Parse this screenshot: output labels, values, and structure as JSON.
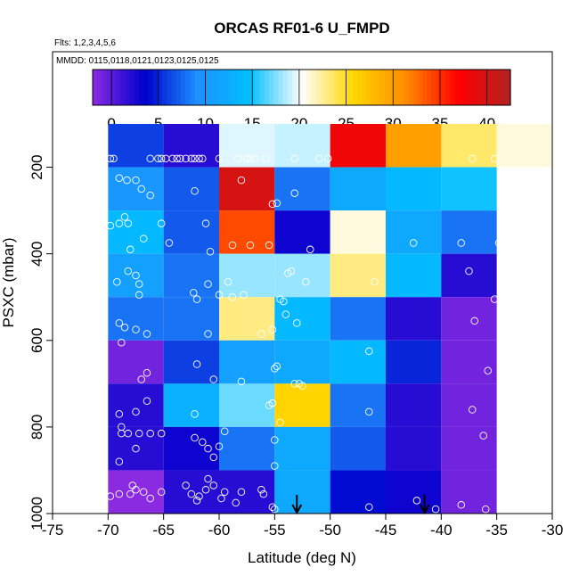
{
  "chart_data": {
    "type": "heatmap",
    "title": "ORCAS RF01-6 U_FMPD",
    "annotations": {
      "flights": "Flts: 1,2,3,4,5,6",
      "dates": "MMDD: 0115,0118,0121,0123,0125,0125"
    },
    "xlabel": "Latitude (deg N)",
    "ylabel": "PSXC (mbar)",
    "xlim": [
      -75,
      -30
    ],
    "ylim": [
      1000,
      100
    ],
    "x_ticks": [
      "-75",
      "-70",
      "-65",
      "-60",
      "-55",
      "-50",
      "-45",
      "-40",
      "-35",
      "-30"
    ],
    "y_ticks": [
      "200",
      "400",
      "600",
      "800",
      "1000"
    ],
    "colorbar": {
      "range": [
        -2,
        42.5
      ],
      "ticks": [
        "0",
        "5",
        "10",
        "15",
        "20",
        "25",
        "30",
        "35",
        "40"
      ],
      "colors": [
        "#8a2be2",
        "#0000cd",
        "#1e90ff",
        "#00bfff",
        "#ffffff",
        "#ffd700",
        "#ff8c00",
        "#ff0000",
        "#b22222"
      ]
    },
    "lat_bins": [
      -70,
      -65,
      -60,
      -55,
      -50,
      -45,
      -40,
      -35,
      -30
    ],
    "pressure_bins": [
      100,
      200,
      300,
      400,
      500,
      600,
      700,
      800,
      900,
      1000
    ],
    "cells": [
      [
        6,
        2,
        19.5,
        19,
        38,
        30,
        23.5,
        21
      ],
      [
        10,
        7,
        40,
        8,
        12,
        14,
        15,
        null
      ],
      [
        14,
        7,
        34,
        3,
        21,
        12,
        8,
        null
      ],
      [
        11,
        8,
        18,
        18,
        23,
        14,
        2,
        null
      ],
      [
        8,
        8,
        23,
        14,
        8,
        2,
        -1,
        null
      ],
      [
        -1,
        6,
        11,
        12,
        14,
        5,
        -1,
        null
      ],
      [
        2,
        13,
        17,
        26,
        8,
        2,
        -1,
        null
      ],
      [
        2,
        3,
        8,
        12,
        7,
        2,
        -1,
        null
      ],
      [
        -2,
        2,
        2,
        12,
        4,
        3,
        -1,
        null
      ]
    ],
    "points": [
      [
        -69.8,
        180
      ],
      [
        -69.5,
        180
      ],
      [
        -66.2,
        180
      ],
      [
        -65.5,
        180
      ],
      [
        -65.2,
        180
      ],
      [
        -64.8,
        180
      ],
      [
        -64.2,
        180
      ],
      [
        -63.8,
        180
      ],
      [
        -63.5,
        180
      ],
      [
        -63,
        180
      ],
      [
        -62.5,
        180
      ],
      [
        -62.2,
        180
      ],
      [
        -61.8,
        180
      ],
      [
        -61.5,
        180
      ],
      [
        -60,
        180
      ],
      [
        -58.3,
        180
      ],
      [
        -57.5,
        180
      ],
      [
        -57.2,
        180
      ],
      [
        -56.8,
        180
      ],
      [
        -55.8,
        180
      ],
      [
        -53.2,
        180
      ],
      [
        -51,
        180
      ],
      [
        -50.2,
        180
      ],
      [
        -37.2,
        180
      ],
      [
        -35.2,
        180
      ],
      [
        -69,
        225
      ],
      [
        -68.3,
        230
      ],
      [
        -67.5,
        230
      ],
      [
        -67,
        250
      ],
      [
        -66.2,
        265
      ],
      [
        -62.2,
        255
      ],
      [
        -58,
        230
      ],
      [
        -55.2,
        285
      ],
      [
        -54.8,
        283
      ],
      [
        -53.2,
        260
      ],
      [
        -69.8,
        335
      ],
      [
        -69,
        330
      ],
      [
        -68.5,
        315
      ],
      [
        -68.2,
        330
      ],
      [
        -68,
        390
      ],
      [
        -66.8,
        365
      ],
      [
        -65.2,
        330
      ],
      [
        -64.5,
        375
      ],
      [
        -61.2,
        330
      ],
      [
        -60.8,
        395
      ],
      [
        -58.8,
        380
      ],
      [
        -57.2,
        380
      ],
      [
        -55.5,
        380
      ],
      [
        -51.8,
        390
      ],
      [
        -45.8,
        375
      ],
      [
        -42.5,
        375
      ],
      [
        -38.2,
        375
      ],
      [
        -34.8,
        375
      ],
      [
        -69.2,
        465
      ],
      [
        -68.2,
        440
      ],
      [
        -67.5,
        450
      ],
      [
        -67.2,
        470
      ],
      [
        -67.2,
        495
      ],
      [
        -62.3,
        490
      ],
      [
        -62,
        505
      ],
      [
        -61,
        470
      ],
      [
        -60,
        495
      ],
      [
        -59.2,
        465
      ],
      [
        -58.8,
        500
      ],
      [
        -57.8,
        495
      ],
      [
        -53.8,
        445
      ],
      [
        -53.5,
        440
      ],
      [
        -52.2,
        465
      ],
      [
        -46,
        465
      ],
      [
        -37.5,
        440
      ],
      [
        -35.2,
        505
      ],
      [
        -69,
        560
      ],
      [
        -68.5,
        570
      ],
      [
        -67.5,
        575
      ],
      [
        -66.5,
        585
      ],
      [
        -68.8,
        605
      ],
      [
        -61,
        585
      ],
      [
        -56.2,
        585
      ],
      [
        -55.2,
        575
      ],
      [
        -54,
        540
      ],
      [
        -54.5,
        505
      ],
      [
        -54.2,
        510
      ],
      [
        -53,
        560
      ],
      [
        -37,
        555
      ],
      [
        -67,
        690
      ],
      [
        -66.5,
        675
      ],
      [
        -62,
        655
      ],
      [
        -60.5,
        690
      ],
      [
        -58,
        695
      ],
      [
        -55,
        665
      ],
      [
        -54.8,
        660
      ],
      [
        -53.2,
        700
      ],
      [
        -52.8,
        700
      ],
      [
        -52.5,
        705
      ],
      [
        -46.5,
        625
      ],
      [
        -35.8,
        670
      ],
      [
        -69,
        770
      ],
      [
        -68.8,
        800
      ],
      [
        -67.5,
        765
      ],
      [
        -66.5,
        740
      ],
      [
        -68.8,
        815
      ],
      [
        -68.2,
        815
      ],
      [
        -67.2,
        815
      ],
      [
        -66.2,
        815
      ],
      [
        -65.2,
        815
      ],
      [
        -62.2,
        770
      ],
      [
        -62.2,
        825
      ],
      [
        -61.5,
        835
      ],
      [
        -61,
        850
      ],
      [
        -60,
        845
      ],
      [
        -59.5,
        810
      ],
      [
        -55.5,
        750
      ],
      [
        -55.2,
        745
      ],
      [
        -54.5,
        790
      ],
      [
        -46.5,
        765
      ],
      [
        -36.2,
        820
      ],
      [
        -37.2,
        760
      ],
      [
        -69,
        880
      ],
      [
        -67.5,
        850
      ],
      [
        -60.5,
        870
      ],
      [
        -55,
        890
      ],
      [
        -55,
        830
      ],
      [
        -69.8,
        960
      ],
      [
        -69,
        955
      ],
      [
        -68,
        955
      ],
      [
        -67.5,
        945
      ],
      [
        -67.8,
        935
      ],
      [
        -66.8,
        950
      ],
      [
        -66.2,
        965
      ],
      [
        -65.2,
        950
      ],
      [
        -63,
        935
      ],
      [
        -62.5,
        955
      ],
      [
        -61.8,
        960
      ],
      [
        -62,
        970
      ],
      [
        -61.2,
        945
      ],
      [
        -60.5,
        935
      ],
      [
        -61,
        920
      ],
      [
        -59.8,
        965
      ],
      [
        -59.5,
        950
      ],
      [
        -58.5,
        975
      ],
      [
        -58,
        950
      ],
      [
        -56,
        955
      ],
      [
        -56.2,
        945
      ],
      [
        -55.2,
        985
      ],
      [
        -55,
        990
      ],
      [
        -46.5,
        985
      ],
      [
        -42.2,
        970
      ],
      [
        -40.5,
        990
      ],
      [
        -38.2,
        980
      ],
      [
        -36,
        990
      ]
    ],
    "arrows": [
      -53,
      -41.5
    ]
  }
}
